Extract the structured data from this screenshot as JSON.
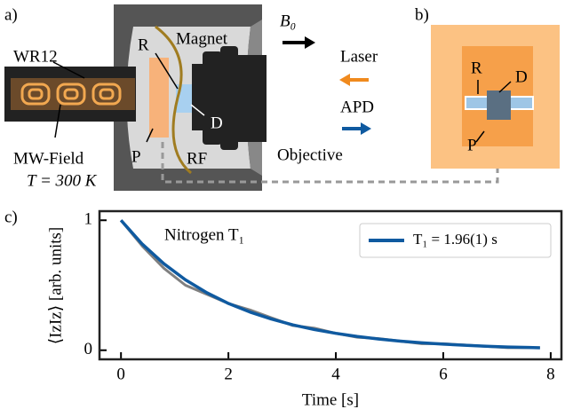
{
  "diagram": {
    "panel_a": {
      "label": "a)",
      "waveguide": "WR12",
      "mw_field": "MW-Field",
      "temperature": "T = 300 K",
      "r": "R",
      "magnet": "Magnet",
      "d": "D",
      "p": "P",
      "rf": "RF",
      "b0": "B₀",
      "laser": "Laser",
      "apd": "APD",
      "objective": "Objective"
    },
    "panel_b": {
      "label": "b)",
      "r": "R",
      "d": "D",
      "p": "P"
    }
  },
  "chart_data": {
    "type": "line",
    "panel_label": "c)",
    "annotation": "Nitrogen T₁",
    "xlabel": "Time [s]",
    "ylabel": "⟨IzIz⟩ [arb. units]",
    "x": [
      0,
      0.4,
      0.8,
      1.2,
      1.6,
      2.0,
      2.4,
      2.8,
      3.2,
      3.6,
      4.0,
      4.4,
      4.8,
      5.2,
      5.6,
      6.0,
      6.4,
      6.8,
      7.2,
      7.6,
      7.8
    ],
    "series": [
      {
        "color": "#808080",
        "values": [
          1.0,
          0.8,
          0.63,
          0.5,
          0.43,
          0.36,
          0.31,
          0.25,
          0.19,
          0.17,
          0.13,
          0.1,
          0.09,
          0.07,
          0.05,
          0.05,
          0.04,
          0.03,
          0.02,
          0.02,
          0.02
        ]
      },
      {
        "name": "T₁ = 1.96(1) s",
        "color": "#0f5aa0",
        "values": [
          1.0,
          0.815,
          0.665,
          0.542,
          0.442,
          0.36,
          0.294,
          0.24,
          0.195,
          0.159,
          0.13,
          0.106,
          0.086,
          0.07,
          0.057,
          0.047,
          0.038,
          0.031,
          0.025,
          0.021,
          0.019
        ]
      }
    ],
    "xlim": [
      -0.4,
      8.2
    ],
    "ylim": [
      -0.07,
      1.07
    ],
    "xticks": [
      0,
      2,
      4,
      6,
      8
    ],
    "yticks": [
      0,
      1
    ],
    "grid": false,
    "legend": "upper right"
  }
}
